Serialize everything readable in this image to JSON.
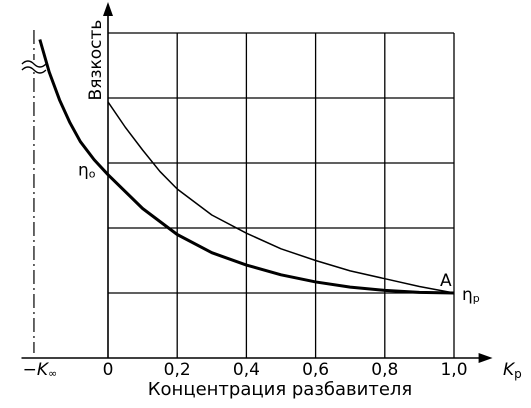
{
  "chart_data": {
    "type": "line",
    "y_label": "Вязкость",
    "x_label": "Концентрация разбавителя",
    "x_axis_symbol": "K",
    "x_axis_symbol_sub": "р",
    "xlim": [
      -0.25,
      1.1
    ],
    "ylim": [
      0,
      5.2
    ],
    "xticks": [
      0,
      {
        "value": 0.2,
        "label": "0,2"
      },
      {
        "value": 0.4,
        "label": "0,4"
      },
      {
        "value": 0.6,
        "label": "0,6"
      },
      {
        "value": 0.8,
        "label": "0,8"
      },
      {
        "value": 1.0,
        "label": "1,0"
      }
    ],
    "k_inf": {
      "value": -0.214,
      "label": "−K",
      "sub": "∞"
    },
    "ygrid": [
      1,
      2,
      3,
      4,
      5
    ],
    "grid": true,
    "annotations": {
      "eta0": "η",
      "eta0_sub": "о",
      "etap": "η",
      "etap_sub": "р",
      "point": "A"
    },
    "series": [
      {
        "color": "#000000",
        "width": 3,
        "x": [
          -0.197,
          -0.17,
          -0.14,
          -0.11,
          -0.08,
          -0.04,
          0,
          0.1,
          0.2,
          0.3,
          0.4,
          0.5,
          0.6,
          0.7,
          0.8,
          0.9,
          1.0
        ],
        "values": [
          4.9,
          4.4,
          3.97,
          3.62,
          3.33,
          3.05,
          2.82,
          2.3,
          1.9,
          1.62,
          1.43,
          1.28,
          1.17,
          1.09,
          1.04,
          1.01,
          1.0
        ]
      },
      {
        "color": "#000000",
        "width": 1.5,
        "x": [
          0,
          0.05,
          0.1,
          0.15,
          0.2,
          0.3,
          0.4,
          0.5,
          0.6,
          0.7,
          0.8,
          0.9,
          1.0
        ],
        "values": [
          3.94,
          3.55,
          3.2,
          2.87,
          2.6,
          2.2,
          1.92,
          1.68,
          1.5,
          1.34,
          1.22,
          1.1,
          1.0
        ]
      }
    ]
  }
}
